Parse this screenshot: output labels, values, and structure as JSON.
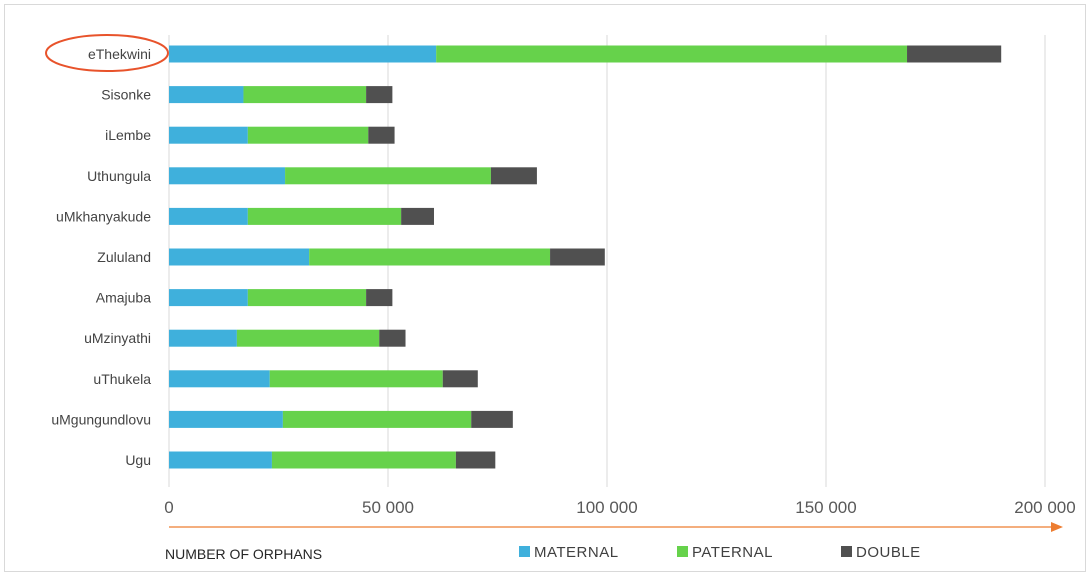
{
  "chart_data": {
    "type": "bar",
    "orientation": "horizontal",
    "stacked": true,
    "title": "",
    "xlabel": "NUMBER OF ORPHANS",
    "ylabel": "",
    "xlim": [
      0,
      200000
    ],
    "x_ticks": [
      0,
      50000,
      100000,
      150000,
      200000
    ],
    "x_tick_labels": [
      "0",
      "50 000",
      "100 000",
      "150 000",
      "200 000"
    ],
    "grid": "vertical",
    "legend_position": "bottom",
    "categories": [
      "eThekwini",
      "Sisonke",
      "iLembe",
      "Uthungula",
      "uMkhanyakude",
      "Zululand",
      "Amajuba",
      "uMzinyathi",
      "uThukela",
      "uMgungundlovu",
      "Ugu"
    ],
    "series": [
      {
        "name": "MATERNAL",
        "color": "#3fb0dc",
        "values": [
          61000,
          17000,
          18000,
          26500,
          18000,
          32000,
          18000,
          15500,
          23000,
          26000,
          23500
        ]
      },
      {
        "name": "PATERNAL",
        "color": "#66d24b",
        "values": [
          107500,
          28000,
          27500,
          47000,
          35000,
          55000,
          27000,
          32500,
          39500,
          43000,
          42000
        ]
      },
      {
        "name": "DOUBLE",
        "color": "#505050",
        "values": [
          21500,
          6000,
          6000,
          10500,
          7500,
          12500,
          6000,
          6000,
          8000,
          9500,
          9000
        ]
      }
    ],
    "highlight": {
      "category": "eThekwini",
      "shape": "ellipse",
      "color": "#e8532b"
    },
    "axis_arrow_color": "#ed7d31"
  }
}
